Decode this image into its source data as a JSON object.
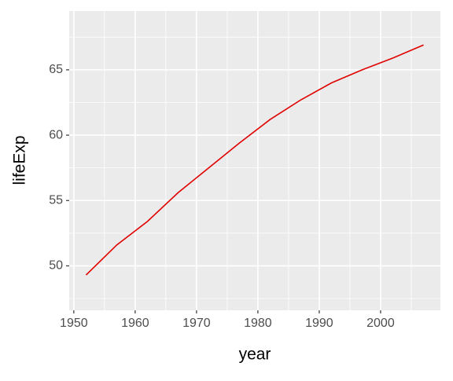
{
  "chart_data": {
    "type": "line",
    "x_label": "year",
    "y_label": "lifeExp",
    "x": [
      1952,
      1957,
      1962,
      1967,
      1972,
      1977,
      1982,
      1987,
      1992,
      1997,
      2002,
      2007
    ],
    "series": [
      {
        "color": "#e00000",
        "values": [
          49.3,
          51.6,
          53.4,
          55.6,
          57.5,
          59.4,
          61.2,
          62.7,
          64.0,
          65.0,
          65.9,
          66.9
        ]
      }
    ],
    "xlim": [
      1949.25,
      2009.75
    ],
    "xticks": [
      1950,
      1960,
      1970,
      1980,
      1990,
      2000
    ],
    "x_minor_breaks": [
      1955,
      1965,
      1975,
      1985,
      1995,
      2005
    ],
    "ylim": [
      46.6,
      69.5
    ],
    "yticks": [
      50,
      55,
      60,
      65
    ],
    "y_minor_breaks": [
      47.5,
      52.5,
      57.5,
      62.5,
      67.5
    ],
    "grid": true
  }
}
